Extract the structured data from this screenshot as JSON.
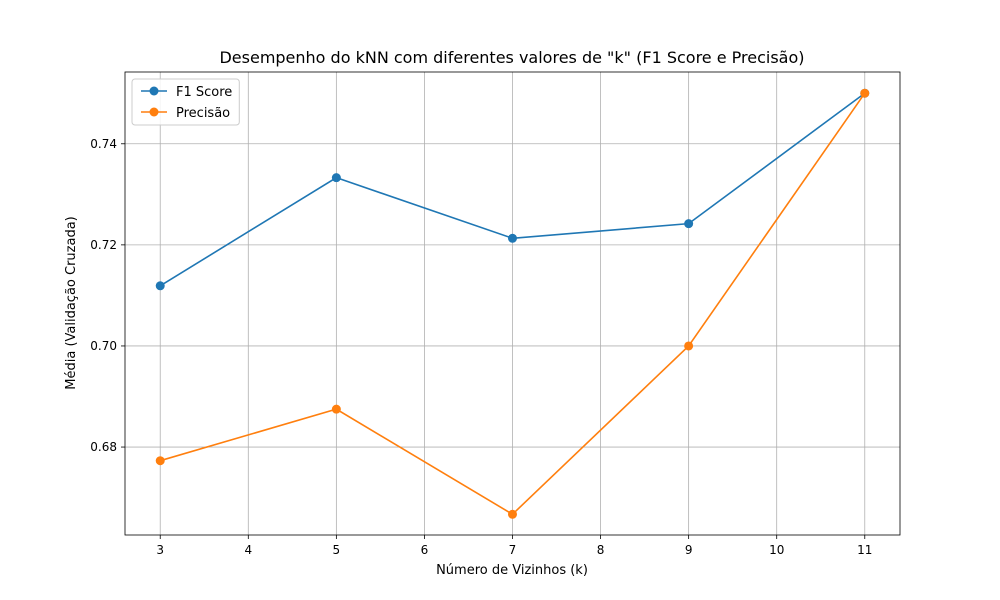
{
  "chart_data": {
    "type": "line",
    "title": "Desempenho do kNN com diferentes valores de \"k\" (F1 Score e Precisão)",
    "xlabel": "Número de Vizinhos (k)",
    "ylabel": "Média (Validação Cruzada)",
    "x": [
      3,
      5,
      7,
      9,
      11
    ],
    "xlim": [
      2.6,
      11.4
    ],
    "ylim": [
      0.6626,
      0.7542
    ],
    "xticks": [
      3,
      4,
      5,
      6,
      7,
      8,
      9,
      10,
      11
    ],
    "yticks": [
      0.68,
      0.7,
      0.72,
      0.74
    ],
    "ytick_labels": [
      "0.68",
      "0.70",
      "0.72",
      "0.74"
    ],
    "grid": true,
    "legend_position": "upper-left",
    "series": [
      {
        "name": "F1 Score",
        "color": "#1f77b4",
        "values": [
          0.7119,
          0.7333,
          0.7213,
          0.7242,
          0.75
        ]
      },
      {
        "name": "Precisão",
        "color": "#ff7f0e",
        "values": [
          0.6773,
          0.6875,
          0.6667,
          0.7,
          0.75
        ]
      }
    ]
  }
}
